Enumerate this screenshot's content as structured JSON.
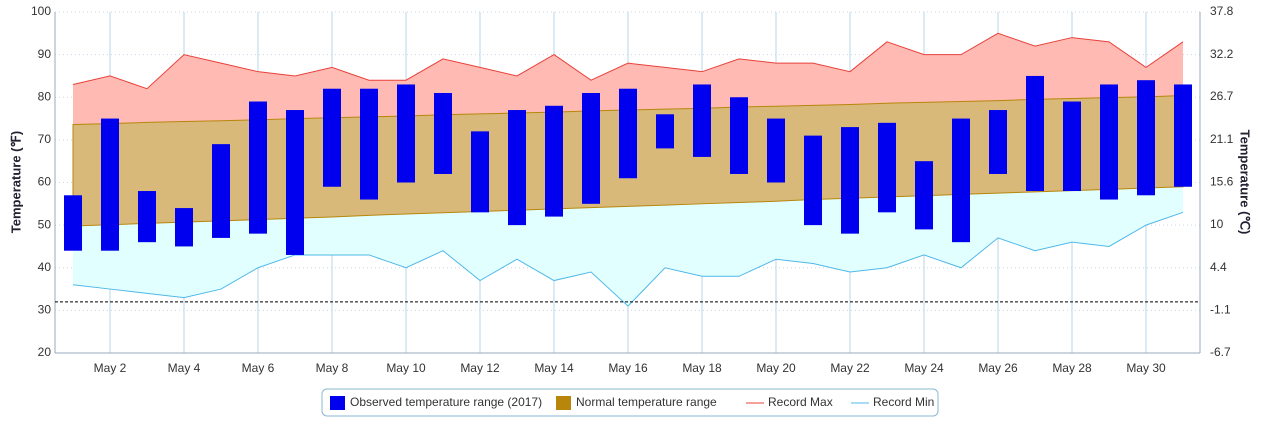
{
  "chart_data": {
    "type": "range",
    "y_label": "Temperature (℉)",
    "y2_label": "Temperature (℃)",
    "categories": [
      null,
      "May 2",
      null,
      "May 4",
      null,
      "May 6",
      null,
      "May 8",
      null,
      "May 10",
      null,
      "May 12",
      null,
      "May 14",
      null,
      "May 16",
      null,
      "May 18",
      null,
      "May 20",
      null,
      "May 22",
      null,
      "May 24",
      null,
      "May 26",
      null,
      "May 28",
      null,
      "May 30",
      null
    ],
    "series": [
      {
        "name": "Observed temperature range (2017)",
        "type": "range-bar",
        "color": "#0000ee",
        "low": [
          44,
          44,
          46,
          45,
          47,
          48,
          43,
          59,
          56,
          60,
          62,
          53,
          50,
          52,
          55,
          61,
          68,
          66,
          62,
          60,
          50,
          48,
          53,
          49,
          46,
          62,
          58,
          58,
          56,
          57,
          59
        ],
        "high": [
          57,
          75,
          58,
          54,
          69,
          79,
          77,
          82,
          82,
          83,
          81,
          72,
          77,
          78,
          81,
          82,
          76,
          83,
          80,
          75,
          71,
          73,
          74,
          65,
          75,
          77,
          85,
          79,
          83,
          84,
          83
        ]
      },
      {
        "name": "Normal temperature range",
        "type": "range-area",
        "color": "#b8860b",
        "fill": "#d9b97a",
        "low": [
          49.8,
          50.1,
          50.4,
          50.7,
          51.0,
          51.3,
          51.6,
          51.9,
          52.3,
          52.6,
          52.9,
          53.2,
          53.5,
          53.8,
          54.1,
          54.4,
          54.7,
          55.0,
          55.3,
          55.6,
          56.0,
          56.3,
          56.6,
          56.9,
          57.2,
          57.5,
          57.8,
          58.1,
          58.4,
          58.7,
          59.0
        ],
        "high": [
          73.6,
          73.8,
          74.1,
          74.3,
          74.5,
          74.7,
          75.0,
          75.2,
          75.4,
          75.6,
          75.9,
          76.1,
          76.3,
          76.5,
          76.8,
          77.0,
          77.2,
          77.4,
          77.7,
          77.9,
          78.1,
          78.3,
          78.6,
          78.8,
          79.0,
          79.2,
          79.5,
          79.7,
          79.9,
          80.1,
          80.4
        ]
      },
      {
        "name": "Record Max",
        "type": "line",
        "color": "#e8413a",
        "fill": "#ffbab3",
        "values": [
          83,
          85,
          82,
          90,
          88,
          86,
          85,
          87,
          84,
          84,
          89,
          87,
          85,
          90,
          84,
          88,
          87,
          86,
          89,
          88,
          88,
          86,
          93,
          90,
          90,
          95,
          92,
          94,
          93,
          87,
          93
        ]
      },
      {
        "name": "Record Min",
        "type": "line",
        "color": "#4fb8e8",
        "fill": "#e2ffff",
        "values": [
          36,
          35,
          34,
          33,
          35,
          40,
          43,
          43,
          43,
          40,
          44,
          37,
          42,
          37,
          39,
          31,
          40,
          38,
          38,
          42,
          41,
          39,
          40,
          43,
          40,
          47,
          44,
          46,
          45,
          50,
          53
        ]
      }
    ],
    "freezing_line": 32,
    "ylim": [
      20,
      100
    ],
    "yticks": [
      20,
      30,
      40,
      50,
      60,
      70,
      80,
      90,
      100
    ],
    "y2lim": [
      -6.7,
      37.8
    ],
    "y2ticks": [
      -6.7,
      -1.1,
      4.4,
      10,
      15.6,
      21.1,
      26.7,
      32.2,
      37.8
    ],
    "grid": true,
    "legend": "bottom"
  }
}
